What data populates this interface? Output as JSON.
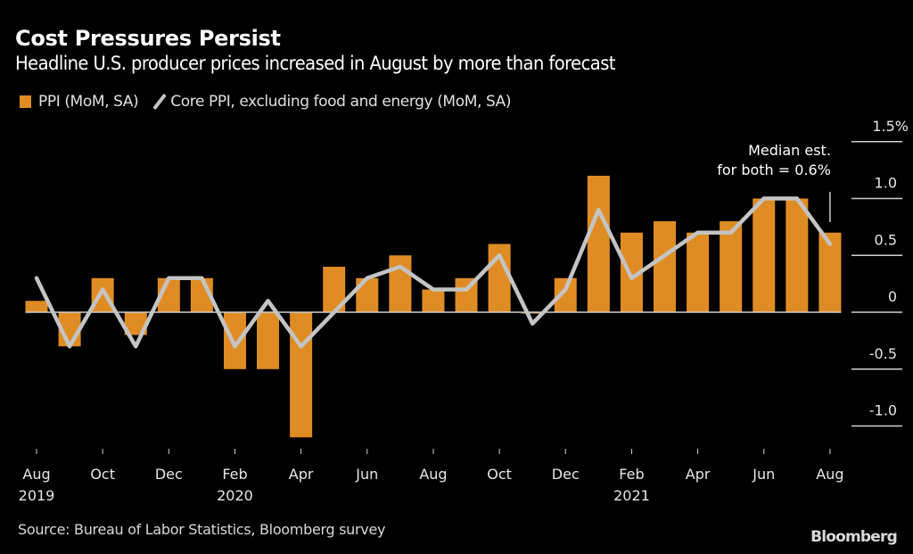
{
  "header": {
    "title": "Cost Pressures Persist",
    "subtitle": "Headline U.S. producer prices increased in August by more than forecast"
  },
  "footer": {
    "source": "Source: Bureau of Labor Statistics, Bloomberg survey",
    "brand": "Bloomberg"
  },
  "colors": {
    "background": "#000000",
    "ppi_bar": "#e08c24",
    "core_line": "#c4c4c4",
    "text": "#e6e6e6",
    "gridline": "#cfcfcf"
  },
  "chart_data": {
    "type": "bar",
    "title": "Cost Pressures Persist",
    "subtitle": "Headline U.S. producer prices increased in August by more than forecast",
    "xlabel": "",
    "ylabel": "%",
    "ylim": [
      -1.2,
      1.5
    ],
    "y_ticks": [
      {
        "value": 1.5,
        "label": "1.5%"
      },
      {
        "value": 1.0,
        "label": "1.0"
      },
      {
        "value": 0.5,
        "label": "0.5"
      },
      {
        "value": 0,
        "label": "0"
      },
      {
        "value": -0.5,
        "label": "-0.5"
      },
      {
        "value": -1.0,
        "label": "-1.0"
      }
    ],
    "y_axis_position": "right",
    "grid": false,
    "legend_position": "top-left",
    "categories": [
      "Aug 2019",
      "Sep 2019",
      "Oct 2019",
      "Nov 2019",
      "Dec 2019",
      "Jan 2020",
      "Feb 2020",
      "Mar 2020",
      "Apr 2020",
      "May 2020",
      "Jun 2020",
      "Jul 2020",
      "Aug 2020",
      "Sep 2020",
      "Oct 2020",
      "Nov 2020",
      "Dec 2020",
      "Jan 2021",
      "Feb 2021",
      "Mar 2021",
      "Apr 2021",
      "May 2021",
      "Jun 2021",
      "Jul 2021",
      "Aug 2021"
    ],
    "x_ticks": [
      {
        "index": 0,
        "label": "Aug",
        "year": "2019"
      },
      {
        "index": 2,
        "label": "Oct",
        "year": ""
      },
      {
        "index": 4,
        "label": "Dec",
        "year": ""
      },
      {
        "index": 6,
        "label": "Feb",
        "year": "2020"
      },
      {
        "index": 8,
        "label": "Apr",
        "year": ""
      },
      {
        "index": 10,
        "label": "Jun",
        "year": ""
      },
      {
        "index": 12,
        "label": "Aug",
        "year": ""
      },
      {
        "index": 14,
        "label": "Oct",
        "year": ""
      },
      {
        "index": 16,
        "label": "Dec",
        "year": ""
      },
      {
        "index": 18,
        "label": "Feb",
        "year": "2021"
      },
      {
        "index": 20,
        "label": "Apr",
        "year": ""
      },
      {
        "index": 22,
        "label": "Jun",
        "year": ""
      },
      {
        "index": 24,
        "label": "Aug",
        "year": ""
      }
    ],
    "series": [
      {
        "name": "PPI (MoM, SA)",
        "type": "bar",
        "values": [
          0.1,
          -0.3,
          0.3,
          -0.2,
          0.3,
          0.3,
          -0.5,
          -0.5,
          -1.1,
          0.4,
          0.3,
          0.5,
          0.2,
          0.3,
          0.6,
          0.0,
          0.3,
          1.2,
          0.7,
          0.8,
          0.7,
          0.8,
          1.0,
          1.0,
          0.7
        ]
      },
      {
        "name": "Core PPI, excluding food and energy (MoM, SA)",
        "type": "line",
        "values": [
          0.3,
          -0.3,
          0.2,
          -0.3,
          0.3,
          0.3,
          -0.3,
          0.1,
          -0.3,
          0.0,
          0.3,
          0.4,
          0.2,
          0.2,
          0.5,
          -0.1,
          0.2,
          0.9,
          0.3,
          0.5,
          0.7,
          0.7,
          1.0,
          1.0,
          0.6
        ]
      }
    ],
    "annotations": [
      {
        "text_lines": [
          "Median est.",
          "for both = 0.6%"
        ],
        "target_index": 24,
        "value": 0.6
      }
    ]
  }
}
